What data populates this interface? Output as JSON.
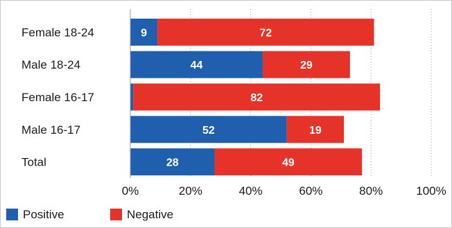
{
  "chart_data": {
    "type": "bar",
    "orientation": "horizontal",
    "stacked": true,
    "categories": [
      "Female 18-24",
      "Male 18-24",
      "Female 16-17",
      "Male 16-17",
      "Total"
    ],
    "series": [
      {
        "name": "Positive",
        "color": "#1f5fad",
        "values": [
          9,
          44,
          1,
          52,
          28
        ],
        "labels": [
          "9",
          "44",
          "",
          "52",
          "28"
        ]
      },
      {
        "name": "Negative",
        "color": "#e63329",
        "values": [
          72,
          29,
          82,
          19,
          49
        ],
        "labels": [
          "72",
          "29",
          "82",
          "19",
          "49"
        ]
      }
    ],
    "xlim": [
      0,
      100
    ],
    "x_ticks": [
      "0%",
      "20%",
      "40%",
      "60%",
      "80%",
      "100%"
    ],
    "grid": true,
    "legend_position": "bottom-left"
  }
}
